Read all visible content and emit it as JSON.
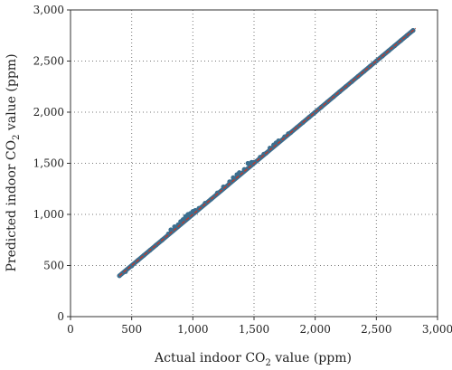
{
  "chart_data": {
    "type": "scatter",
    "title": "",
    "xlabel": {
      "before": "Actual indoor CO",
      "sub": "2",
      "after": " value (ppm)"
    },
    "ylabel": {
      "before": "Predicted indoor CO",
      "sub": "2",
      "after": " value (ppm)"
    },
    "xlim": [
      0,
      3000
    ],
    "ylim": [
      0,
      3000
    ],
    "xticks": [
      0,
      500,
      1000,
      1500,
      2000,
      2500,
      3000
    ],
    "yticks": [
      0,
      500,
      1000,
      1500,
      2000,
      2500,
      3000
    ],
    "xtick_labels": [
      "0",
      "500",
      "1,000",
      "1,500",
      "2,000",
      "2,500",
      "3,000"
    ],
    "ytick_labels": [
      "0",
      "500",
      "1,000",
      "1,500",
      "2,000",
      "2,500",
      "3,000"
    ],
    "grid": true,
    "grid_style": "dotted",
    "series": [
      {
        "kind": "points",
        "color": "#3b6e8f",
        "points": [
          [
            400,
            400
          ],
          [
            450,
            440
          ],
          [
            500,
            495
          ],
          [
            550,
            550
          ],
          [
            600,
            600
          ],
          [
            650,
            650
          ],
          [
            700,
            700
          ],
          [
            750,
            750
          ],
          [
            800,
            810
          ],
          [
            820,
            850
          ],
          [
            850,
            880
          ],
          [
            880,
            900
          ],
          [
            900,
            930
          ],
          [
            920,
            950
          ],
          [
            940,
            980
          ],
          [
            960,
            1000
          ],
          [
            980,
            1010
          ],
          [
            1000,
            1030
          ],
          [
            1020,
            1040
          ],
          [
            1050,
            1060
          ],
          [
            1100,
            1110
          ],
          [
            1150,
            1150
          ],
          [
            1200,
            1210
          ],
          [
            1250,
            1270
          ],
          [
            1300,
            1320
          ],
          [
            1330,
            1360
          ],
          [
            1360,
            1390
          ],
          [
            1380,
            1410
          ],
          [
            1420,
            1440
          ],
          [
            1450,
            1500
          ],
          [
            1480,
            1510
          ],
          [
            1500,
            1510
          ],
          [
            1550,
            1560
          ],
          [
            1580,
            1590
          ],
          [
            1600,
            1600
          ],
          [
            1630,
            1650
          ],
          [
            1660,
            1680
          ],
          [
            1680,
            1700
          ],
          [
            1700,
            1720
          ],
          [
            1750,
            1760
          ],
          [
            1780,
            1790
          ],
          [
            1800,
            1800
          ],
          [
            1850,
            1850
          ],
          [
            1900,
            1900
          ],
          [
            1950,
            1950
          ],
          [
            2000,
            2000
          ],
          [
            2050,
            2050
          ],
          [
            2100,
            2100
          ],
          [
            2150,
            2150
          ],
          [
            2200,
            2200
          ],
          [
            2250,
            2250
          ],
          [
            2300,
            2300
          ],
          [
            2350,
            2350
          ],
          [
            2400,
            2400
          ],
          [
            2450,
            2450
          ],
          [
            2500,
            2500
          ],
          [
            2550,
            2550
          ],
          [
            2600,
            2600
          ],
          [
            2650,
            2650
          ],
          [
            2700,
            2700
          ],
          [
            2750,
            2750
          ],
          [
            2800,
            2800
          ]
        ]
      },
      {
        "kind": "line",
        "color": "#c0392b",
        "style": "dashed",
        "points": [
          [
            400,
            400
          ],
          [
            2820,
            2820
          ]
        ]
      }
    ]
  }
}
